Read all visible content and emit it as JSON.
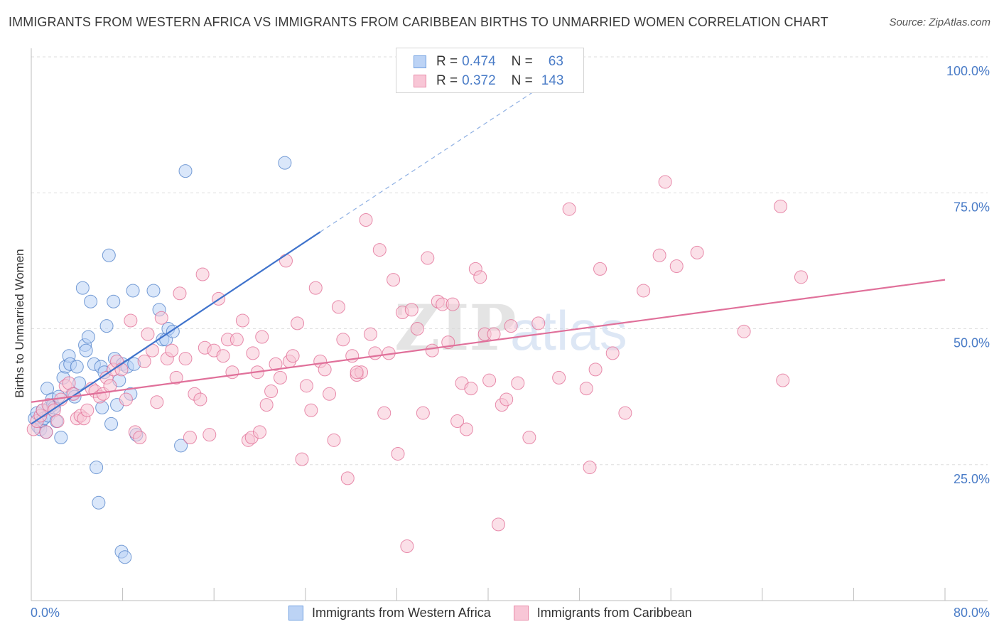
{
  "header": {
    "title": "IMMIGRANTS FROM WESTERN AFRICA VS IMMIGRANTS FROM CARIBBEAN BIRTHS TO UNMARRIED WOMEN CORRELATION CHART",
    "source": "Source: ZipAtlas.com"
  },
  "watermark": {
    "zip": "ZIP",
    "atlas": "atlas"
  },
  "legend": {
    "rows": [
      {
        "r_label": "R =",
        "r_value": "0.474",
        "n_label": "N =",
        "n_value": "63",
        "color": "#6f9fe0",
        "fill": "#bcd3f5"
      },
      {
        "r_label": "R =",
        "r_value": "0.372",
        "n_label": "N =",
        "n_value": "143",
        "color": "#e88aa8",
        "fill": "#f8c6d6"
      }
    ]
  },
  "bottom_legend": {
    "items": [
      {
        "label": "Immigrants from Western Africa",
        "color": "#6f9fe0",
        "fill": "#bcd3f5"
      },
      {
        "label": "Immigrants from Caribbean",
        "color": "#e88aa8",
        "fill": "#f8c6d6"
      }
    ]
  },
  "chart_data": {
    "type": "scatter",
    "title": "IMMIGRANTS FROM WESTERN AFRICA VS IMMIGRANTS FROM CARIBBEAN BIRTHS TO UNMARRIED WOMEN CORRELATION CHART",
    "xlabel": "",
    "ylabel": "Births to Unmarried Women",
    "xlim": [
      0,
      80
    ],
    "ylim": [
      0,
      100
    ],
    "x_tick_labels": [
      "0.0%",
      "80.0%"
    ],
    "y_ticks": [
      25,
      50,
      75,
      100
    ],
    "y_tick_labels": [
      "25.0%",
      "50.0%",
      "75.0%",
      "100.0%"
    ],
    "grid": "horizontal dashed",
    "legend_position": "top-center",
    "series": [
      {
        "name": "Immigrants from Western Africa",
        "color": "#4a7cc7",
        "fill": "#bcd3f5",
        "r": 0.474,
        "n": 63,
        "trend": {
          "x0": 0,
          "y0": 32.5,
          "x1": 25.3,
          "y1": 67.8,
          "dashed_to_x": 45,
          "dashed_to_y": 95
        },
        "points": [
          [
            0.3,
            33.5
          ],
          [
            0.5,
            34.5
          ],
          [
            0.6,
            32
          ],
          [
            0.8,
            31.5
          ],
          [
            0.9,
            33
          ],
          [
            1.0,
            35
          ],
          [
            1.1,
            33.5
          ],
          [
            1.3,
            31
          ],
          [
            1.4,
            39
          ],
          [
            1.5,
            34
          ],
          [
            1.6,
            35.5
          ],
          [
            1.8,
            37
          ],
          [
            1.9,
            36
          ],
          [
            2.0,
            35.5
          ],
          [
            2.2,
            33
          ],
          [
            2.4,
            37.5
          ],
          [
            2.6,
            30
          ],
          [
            2.8,
            41
          ],
          [
            3.0,
            43
          ],
          [
            3.3,
            45
          ],
          [
            3.4,
            43.5
          ],
          [
            3.6,
            38
          ],
          [
            3.8,
            37.5
          ],
          [
            4.0,
            43
          ],
          [
            4.2,
            40
          ],
          [
            4.5,
            57.5
          ],
          [
            4.7,
            47
          ],
          [
            4.8,
            46
          ],
          [
            5.0,
            48.5
          ],
          [
            5.2,
            55
          ],
          [
            5.5,
            43.5
          ],
          [
            5.7,
            24.5
          ],
          [
            5.9,
            18
          ],
          [
            6.1,
            43
          ],
          [
            6.2,
            35.5
          ],
          [
            6.4,
            42
          ],
          [
            6.6,
            50.5
          ],
          [
            6.8,
            63.5
          ],
          [
            7.0,
            32.5
          ],
          [
            7.2,
            55
          ],
          [
            7.3,
            44.5
          ],
          [
            7.5,
            36
          ],
          [
            7.7,
            40.5
          ],
          [
            7.9,
            9
          ],
          [
            8.0,
            43.5
          ],
          [
            8.2,
            8
          ],
          [
            8.4,
            43
          ],
          [
            8.7,
            38
          ],
          [
            8.9,
            57
          ],
          [
            9.0,
            43.5
          ],
          [
            9.2,
            30.5
          ],
          [
            10.7,
            57
          ],
          [
            11.2,
            53.5
          ],
          [
            11.5,
            48
          ],
          [
            11.8,
            48
          ],
          [
            12.0,
            50
          ],
          [
            12.4,
            49.5
          ],
          [
            13.1,
            28.5
          ],
          [
            13.5,
            79
          ],
          [
            22.2,
            80.5
          ]
        ]
      },
      {
        "name": "Immigrants from Caribbean",
        "color": "#e06891",
        "fill": "#f8c6d6",
        "r": 0.372,
        "n": 143,
        "trend": {
          "x0": 0,
          "y0": 36.5,
          "x1": 80,
          "y1": 59
        },
        "points": [
          [
            0.2,
            31.5
          ],
          [
            0.5,
            33
          ],
          [
            0.8,
            34
          ],
          [
            1.0,
            35
          ],
          [
            1.3,
            31
          ],
          [
            1.5,
            36
          ],
          [
            2.0,
            35
          ],
          [
            2.3,
            33
          ],
          [
            2.6,
            37
          ],
          [
            3.0,
            39.5
          ],
          [
            3.3,
            40
          ],
          [
            3.7,
            38
          ],
          [
            4.0,
            33.5
          ],
          [
            4.3,
            34
          ],
          [
            4.6,
            33.5
          ],
          [
            4.9,
            35
          ],
          [
            5.3,
            39
          ],
          [
            5.6,
            38.5
          ],
          [
            6.0,
            37.5
          ],
          [
            6.3,
            38
          ],
          [
            6.6,
            41
          ],
          [
            6.9,
            39.5
          ],
          [
            7.2,
            42.5
          ],
          [
            7.5,
            44
          ],
          [
            7.9,
            42.5
          ],
          [
            8.3,
            37
          ],
          [
            8.7,
            51.5
          ],
          [
            9.1,
            31
          ],
          [
            9.5,
            30
          ],
          [
            9.9,
            44
          ],
          [
            10.2,
            49
          ],
          [
            10.6,
            46
          ],
          [
            11.0,
            36.5
          ],
          [
            11.4,
            52
          ],
          [
            11.9,
            44.5
          ],
          [
            12.3,
            46
          ],
          [
            12.7,
            41
          ],
          [
            13.0,
            56.5
          ],
          [
            13.5,
            44.5
          ],
          [
            13.9,
            30
          ],
          [
            14.3,
            38
          ],
          [
            14.8,
            37
          ],
          [
            15.2,
            46.5
          ],
          [
            15.6,
            30.5
          ],
          [
            16.0,
            46
          ],
          [
            16.4,
            55.5
          ],
          [
            16.8,
            45
          ],
          [
            17.2,
            48
          ],
          [
            17.6,
            42
          ],
          [
            18.0,
            48
          ],
          [
            18.5,
            51.5
          ],
          [
            19.0,
            29.5
          ],
          [
            19.4,
            45.5
          ],
          [
            19.8,
            42
          ],
          [
            20.2,
            48.5
          ],
          [
            20.6,
            36
          ],
          [
            21.0,
            38.5
          ],
          [
            21.4,
            43.5
          ],
          [
            21.8,
            41
          ],
          [
            22.3,
            62.5
          ],
          [
            22.6,
            44
          ],
          [
            22.9,
            45
          ],
          [
            23.3,
            51
          ],
          [
            23.7,
            26
          ],
          [
            24.1,
            39.5
          ],
          [
            24.5,
            35
          ],
          [
            24.9,
            57.5
          ],
          [
            25.3,
            44
          ],
          [
            25.7,
            42.5
          ],
          [
            26.1,
            38
          ],
          [
            26.5,
            29.5
          ],
          [
            26.9,
            54
          ],
          [
            27.3,
            48
          ],
          [
            27.7,
            22.5
          ],
          [
            28.1,
            45
          ],
          [
            28.5,
            41.5
          ],
          [
            28.9,
            42
          ],
          [
            29.3,
            70
          ],
          [
            29.7,
            49
          ],
          [
            30.1,
            45.5
          ],
          [
            30.5,
            64.5
          ],
          [
            30.9,
            34.5
          ],
          [
            31.3,
            45.5
          ],
          [
            31.7,
            59
          ],
          [
            32.1,
            27
          ],
          [
            32.5,
            53
          ],
          [
            32.9,
            10
          ],
          [
            33.3,
            53.5
          ],
          [
            33.8,
            50
          ],
          [
            34.3,
            34.5
          ],
          [
            34.7,
            63
          ],
          [
            35.1,
            46
          ],
          [
            35.6,
            55
          ],
          [
            36.0,
            54.5
          ],
          [
            36.5,
            47.5
          ],
          [
            36.9,
            54.5
          ],
          [
            37.3,
            33
          ],
          [
            37.7,
            40
          ],
          [
            38.1,
            31.5
          ],
          [
            38.5,
            39
          ],
          [
            38.9,
            61
          ],
          [
            39.3,
            59.5
          ],
          [
            39.7,
            49
          ],
          [
            40.1,
            40.5
          ],
          [
            40.5,
            49
          ],
          [
            40.9,
            14
          ],
          [
            41.2,
            36
          ],
          [
            41.6,
            37
          ],
          [
            42.6,
            40
          ],
          [
            43.6,
            30
          ],
          [
            44.4,
            51
          ],
          [
            46.2,
            41
          ],
          [
            47.1,
            72
          ],
          [
            48.6,
            39
          ],
          [
            48.9,
            24.5
          ],
          [
            49.4,
            42.5
          ],
          [
            49.8,
            61
          ],
          [
            50.9,
            45.5
          ],
          [
            52.0,
            34.5
          ],
          [
            53.6,
            57
          ],
          [
            55.0,
            63.5
          ],
          [
            55.5,
            77
          ],
          [
            56.5,
            61.5
          ],
          [
            58.3,
            64
          ],
          [
            62.4,
            49.5
          ],
          [
            65.6,
            72.5
          ],
          [
            65.8,
            40.5
          ],
          [
            67.4,
            59.5
          ],
          [
            42.0,
            50.5
          ],
          [
            28.5,
            42
          ],
          [
            19.3,
            30
          ],
          [
            20.0,
            31
          ],
          [
            15.0,
            60
          ]
        ]
      }
    ]
  }
}
